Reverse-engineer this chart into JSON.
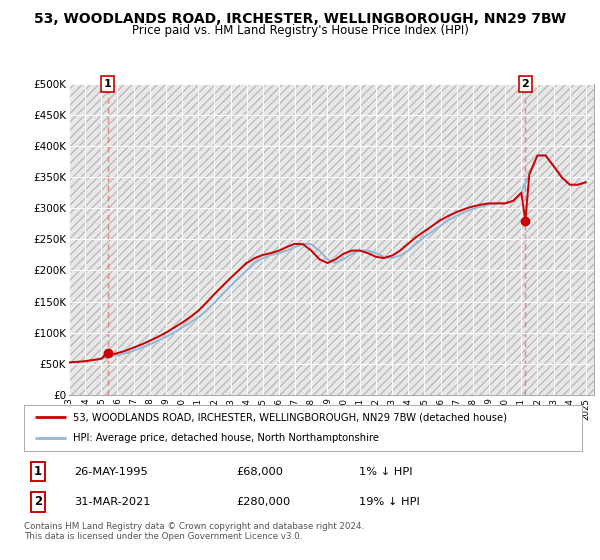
{
  "title": "53, WOODLANDS ROAD, IRCHESTER, WELLINGBOROUGH, NN29 7BW",
  "subtitle": "Price paid vs. HM Land Registry's House Price Index (HPI)",
  "ylabel_ticks": [
    "£0",
    "£50K",
    "£100K",
    "£150K",
    "£200K",
    "£250K",
    "£300K",
    "£350K",
    "£400K",
    "£450K",
    "£500K"
  ],
  "ylim": [
    0,
    500000
  ],
  "xlim_start": 1993.0,
  "xlim_end": 2025.5,
  "hpi_color": "#92b8d8",
  "sale_color": "#cc0000",
  "dashed_line_color": "#e88080",
  "background_plot": "#e8e8e8",
  "background_fig": "#ffffff",
  "sale1_x": 1995.4,
  "sale1_y": 68000,
  "sale2_x": 2021.25,
  "sale2_y": 280000,
  "legend_label1": "53, WOODLANDS ROAD, IRCHESTER, WELLINGBOROUGH, NN29 7BW (detached house)",
  "legend_label2": "HPI: Average price, detached house, North Northamptonshire",
  "annotation1_label": "1",
  "annotation2_label": "2",
  "table_row1": [
    "1",
    "26-MAY-1995",
    "£68,000",
    "1% ↓ HPI"
  ],
  "table_row2": [
    "2",
    "31-MAR-2021",
    "£280,000",
    "19% ↓ HPI"
  ],
  "footer": "Contains HM Land Registry data © Crown copyright and database right 2024.\nThis data is licensed under the Open Government Licence v3.0.",
  "hpi_x": [
    1993.0,
    1993.5,
    1994.0,
    1994.5,
    1995.0,
    1995.5,
    1996.0,
    1996.5,
    1997.0,
    1997.5,
    1998.0,
    1998.5,
    1999.0,
    1999.5,
    2000.0,
    2000.5,
    2001.0,
    2001.5,
    2002.0,
    2002.5,
    2003.0,
    2003.5,
    2004.0,
    2004.5,
    2005.0,
    2005.5,
    2006.0,
    2006.5,
    2007.0,
    2007.5,
    2008.0,
    2008.5,
    2009.0,
    2009.5,
    2010.0,
    2010.5,
    2011.0,
    2011.5,
    2012.0,
    2012.5,
    2013.0,
    2013.5,
    2014.0,
    2014.5,
    2015.0,
    2015.5,
    2016.0,
    2016.5,
    2017.0,
    2017.5,
    2018.0,
    2018.5,
    2019.0,
    2019.5,
    2020.0,
    2020.5,
    2021.0,
    2021.5,
    2022.0,
    2022.5,
    2023.0,
    2023.5,
    2024.0,
    2024.5,
    2025.0
  ],
  "hpi_y": [
    52000,
    53000,
    54000,
    56000,
    58000,
    61000,
    64000,
    67000,
    71000,
    76000,
    81000,
    87000,
    93000,
    100000,
    108000,
    116000,
    125000,
    135000,
    148000,
    162000,
    175000,
    188000,
    200000,
    212000,
    220000,
    225000,
    228000,
    232000,
    238000,
    243000,
    242000,
    232000,
    218000,
    212000,
    218000,
    227000,
    232000,
    232000,
    228000,
    222000,
    220000,
    224000,
    232000,
    243000,
    254000,
    263000,
    272000,
    281000,
    288000,
    294000,
    299000,
    303000,
    306000,
    308000,
    308000,
    312000,
    325000,
    355000,
    385000,
    385000,
    368000,
    350000,
    338000,
    338000,
    342000
  ],
  "sale_x": [
    1993.0,
    1993.5,
    1994.0,
    1994.5,
    1995.0,
    1995.4,
    1995.5,
    1996.0,
    1996.5,
    1997.0,
    1997.5,
    1998.0,
    1998.5,
    1999.0,
    1999.5,
    2000.0,
    2000.5,
    2001.0,
    2001.5,
    2002.0,
    2002.5,
    2003.0,
    2003.5,
    2004.0,
    2004.5,
    2005.0,
    2005.5,
    2006.0,
    2006.5,
    2007.0,
    2007.5,
    2008.0,
    2008.5,
    2009.0,
    2009.5,
    2010.0,
    2010.5,
    2011.0,
    2011.5,
    2012.0,
    2012.5,
    2013.0,
    2013.5,
    2014.0,
    2014.5,
    2015.0,
    2015.5,
    2016.0,
    2016.5,
    2017.0,
    2017.5,
    2018.0,
    2018.5,
    2019.0,
    2019.5,
    2020.0,
    2020.5,
    2021.0,
    2021.25,
    2021.5,
    2022.0,
    2022.5,
    2023.0,
    2023.5,
    2024.0,
    2024.5,
    2025.0
  ],
  "sale_y": [
    52000,
    53000,
    54000,
    56000,
    58000,
    68000,
    64000,
    67000,
    71000,
    76000,
    81000,
    87000,
    93000,
    100000,
    108000,
    116000,
    125000,
    135000,
    148000,
    162000,
    175000,
    188000,
    200000,
    212000,
    220000,
    225000,
    228000,
    232000,
    238000,
    243000,
    242000,
    232000,
    218000,
    212000,
    218000,
    227000,
    232000,
    232000,
    228000,
    222000,
    220000,
    224000,
    232000,
    243000,
    254000,
    263000,
    272000,
    281000,
    288000,
    294000,
    299000,
    303000,
    306000,
    308000,
    308000,
    308000,
    312000,
    325000,
    280000,
    355000,
    385000,
    385000,
    368000,
    350000,
    338000,
    338000,
    342000
  ]
}
